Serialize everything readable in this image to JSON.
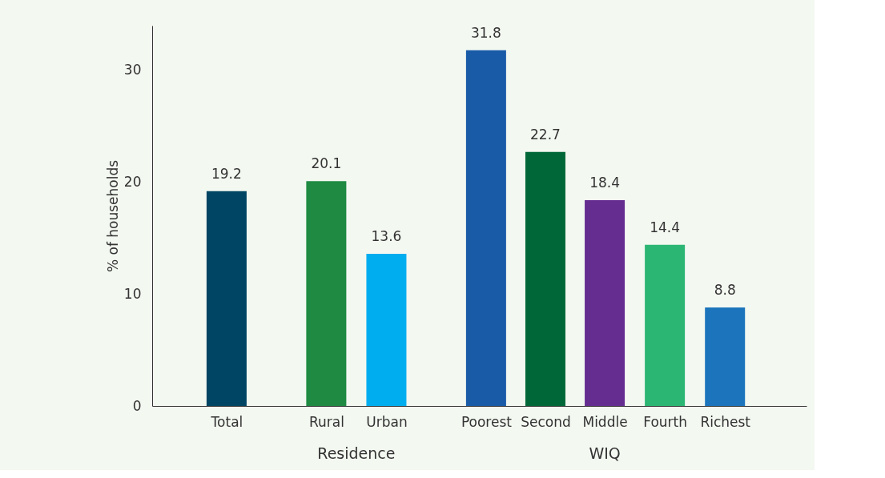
{
  "chart_data": {
    "type": "bar",
    "categories": [
      "Total",
      "Rural",
      "Urban",
      "Poorest",
      "Second",
      "Middle",
      "Fourth",
      "Richest"
    ],
    "values": [
      19.2,
      20.1,
      13.6,
      31.8,
      22.7,
      18.4,
      14.4,
      8.8
    ],
    "colors": [
      "#004563",
      "#1e8a42",
      "#00aeef",
      "#1a5ba8",
      "#006838",
      "#662d91",
      "#2bb673",
      "#1c75bc"
    ],
    "ylabel": "% of households",
    "ylim": [
      0,
      34
    ],
    "yticks": [
      0,
      10,
      20,
      30
    ],
    "data_labels": true,
    "grid": false,
    "annotations": [
      "Residence",
      "WIQ"
    ]
  }
}
